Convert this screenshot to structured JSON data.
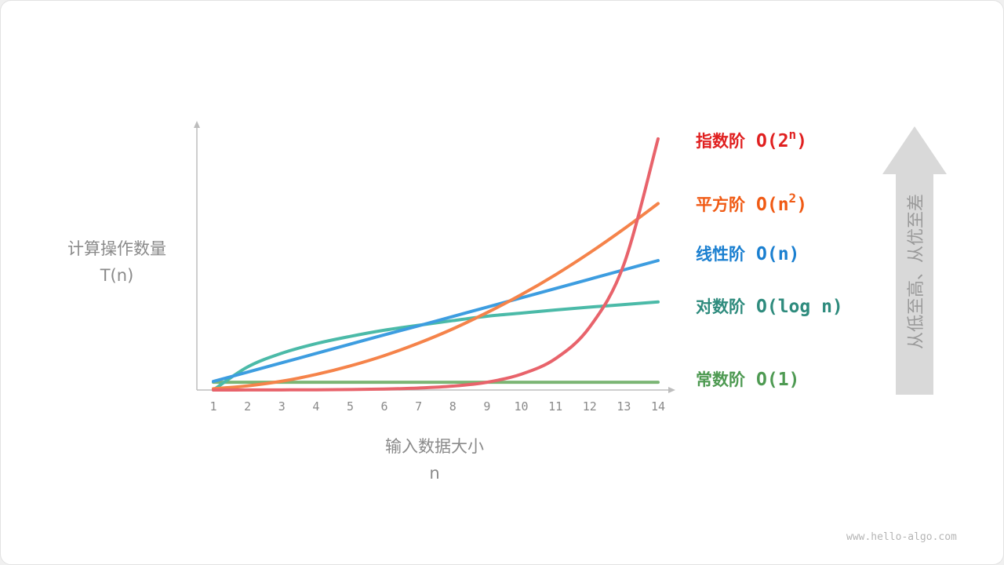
{
  "chart_data": {
    "type": "line",
    "x": [
      1,
      2,
      3,
      4,
      5,
      6,
      7,
      8,
      9,
      10,
      11,
      12,
      13,
      14
    ],
    "xlabel": "输入数据大小",
    "xlabel_symbol": "n",
    "ylabel": "计算操作数量",
    "ylabel_symbol": "T(n)",
    "xlim": [
      1,
      14
    ],
    "ylim": [
      0,
      100
    ],
    "grid": false,
    "y_ticks_shown": false,
    "legend_placement": "right",
    "series": [
      {
        "name": "常数阶",
        "notation": "O(1)",
        "color": "#7bb574",
        "label_color": "#4e9a52",
        "values": [
          3,
          3,
          3,
          3,
          3,
          3,
          3,
          3,
          3,
          3,
          3,
          3,
          3,
          3
        ]
      },
      {
        "name": "对数阶",
        "notation": "O(log n)",
        "color": "#4bbaa8",
        "label_color": "#2e8b7d",
        "values": [
          0,
          8.9,
          14.2,
          17.9,
          20.7,
          23.1,
          25.0,
          26.8,
          28.5,
          29.7,
          30.9,
          32.0,
          33.0,
          34.0
        ]
      },
      {
        "name": "线性阶",
        "notation": "O(n)",
        "color": "#3d9de0",
        "label_color": "#1a7fd0",
        "values": [
          3.3,
          6.9,
          10.5,
          14.1,
          17.7,
          21.3,
          24.8,
          28.4,
          32.0,
          35.6,
          39.2,
          42.8,
          46.4,
          50.0
        ]
      },
      {
        "name": "平方阶",
        "notation": "O(n2)",
        "notation_base": "O(n",
        "notation_sup": "2",
        "color": "#f5834a",
        "label_color": "#f05a14",
        "values": [
          0.5,
          1.6,
          3.4,
          6.0,
          9.3,
          13.3,
          18.1,
          23.6,
          29.9,
          36.8,
          44.5,
          53.0,
          62.2,
          72.0
        ]
      },
      {
        "name": "指数阶",
        "notation": "O(2n)",
        "notation_base": "O(2",
        "notation_sup": "n",
        "color": "#e8636b",
        "label_color": "#e02020",
        "values": [
          0.01,
          0.02,
          0.05,
          0.09,
          0.19,
          0.38,
          0.76,
          1.5,
          3.0,
          6.1,
          12.1,
          24.3,
          48.5,
          97.0
        ]
      }
    ]
  },
  "arrow": {
    "text": "从低至高、从优至差",
    "color": "#d9d9d9"
  },
  "watermark": "www.hello-algo.com"
}
